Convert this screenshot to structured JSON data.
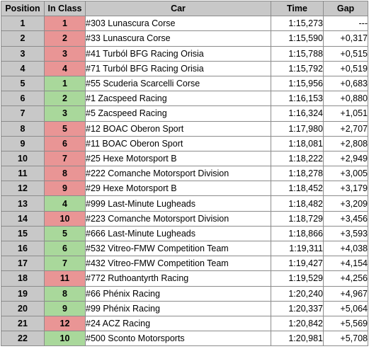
{
  "colors": {
    "header_bg": "#c8c8c8",
    "position_bg": "#c8c8c8",
    "class_red": "#e99595",
    "class_green": "#a9d89b",
    "border": "#8c8c8c"
  },
  "headers": [
    "Position",
    "In Class",
    "Car",
    "Time",
    "Gap"
  ],
  "rows": [
    {
      "position": "1",
      "in_class": "1",
      "class_color": "red",
      "car": "#303 Lunascura Corse",
      "time": "1:15,273",
      "gap": "---"
    },
    {
      "position": "2",
      "in_class": "2",
      "class_color": "red",
      "car": "#33 Lunascura Corse",
      "time": "1:15,590",
      "gap": "+0,317"
    },
    {
      "position": "3",
      "in_class": "3",
      "class_color": "red",
      "car": "#41 Turból BFG Racing Orisia",
      "time": "1:15,788",
      "gap": "+0,515"
    },
    {
      "position": "4",
      "in_class": "4",
      "class_color": "red",
      "car": "#71 Turból BFG Racing Orisia",
      "time": "1:15,792",
      "gap": "+0,519"
    },
    {
      "position": "5",
      "in_class": "1",
      "class_color": "green",
      "car": "#55 Scuderia Scarcelli Corse",
      "time": "1:15,956",
      "gap": "+0,683"
    },
    {
      "position": "6",
      "in_class": "2",
      "class_color": "green",
      "car": "#1 Zacspeed Racing",
      "time": "1:16,153",
      "gap": "+0,880"
    },
    {
      "position": "7",
      "in_class": "3",
      "class_color": "green",
      "car": "#5 Zacspeed Racing",
      "time": "1:16,324",
      "gap": "+1,051"
    },
    {
      "position": "8",
      "in_class": "5",
      "class_color": "red",
      "car": "#12 BOAC Oberon Sport",
      "time": "1:17,980",
      "gap": "+2,707"
    },
    {
      "position": "9",
      "in_class": "6",
      "class_color": "red",
      "car": "#11 BOAC Oberon Sport",
      "time": "1:18,081",
      "gap": "+2,808"
    },
    {
      "position": "10",
      "in_class": "7",
      "class_color": "red",
      "car": "#25 Hexe Motorsport B",
      "time": "1:18,222",
      "gap": "+2,949"
    },
    {
      "position": "11",
      "in_class": "8",
      "class_color": "red",
      "car": "#222 Comanche Motorsport Division",
      "time": "1:18,278",
      "gap": "+3,005"
    },
    {
      "position": "12",
      "in_class": "9",
      "class_color": "red",
      "car": "#29 Hexe Motorsport B",
      "time": "1:18,452",
      "gap": "+3,179"
    },
    {
      "position": "13",
      "in_class": "4",
      "class_color": "green",
      "car": "#999 Last-Minute Lugheads",
      "time": "1:18,482",
      "gap": "+3,209"
    },
    {
      "position": "14",
      "in_class": "10",
      "class_color": "red",
      "car": "#223 Comanche Motorsport Division",
      "time": "1:18,729",
      "gap": "+3,456"
    },
    {
      "position": "15",
      "in_class": "5",
      "class_color": "green",
      "car": "#666 Last-Minute Lugheads",
      "time": "1:18,866",
      "gap": "+3,593"
    },
    {
      "position": "16",
      "in_class": "6",
      "class_color": "green",
      "car": "#532 Vitreo-FMW Competition Team",
      "time": "1:19,311",
      "gap": "+4,038"
    },
    {
      "position": "17",
      "in_class": "7",
      "class_color": "green",
      "car": "#432 Vitreo-FMW Competition Team",
      "time": "1:19,427",
      "gap": "+4,154"
    },
    {
      "position": "18",
      "in_class": "11",
      "class_color": "red",
      "car": "#772 Ruthoantyrth Racing",
      "time": "1:19,529",
      "gap": "+4,256"
    },
    {
      "position": "19",
      "in_class": "8",
      "class_color": "green",
      "car": "#66 Phénix Racing",
      "time": "1:20,240",
      "gap": "+4,967"
    },
    {
      "position": "20",
      "in_class": "9",
      "class_color": "green",
      "car": "#99 Phénix Racing",
      "time": "1:20,337",
      "gap": "+5,064"
    },
    {
      "position": "21",
      "in_class": "12",
      "class_color": "red",
      "car": "#24 ACZ Racing",
      "time": "1:20,842",
      "gap": "+5,569"
    },
    {
      "position": "22",
      "in_class": "10",
      "class_color": "green",
      "car": "#500 Sconto Motorsports",
      "time": "1:20,981",
      "gap": "+5,708"
    }
  ]
}
